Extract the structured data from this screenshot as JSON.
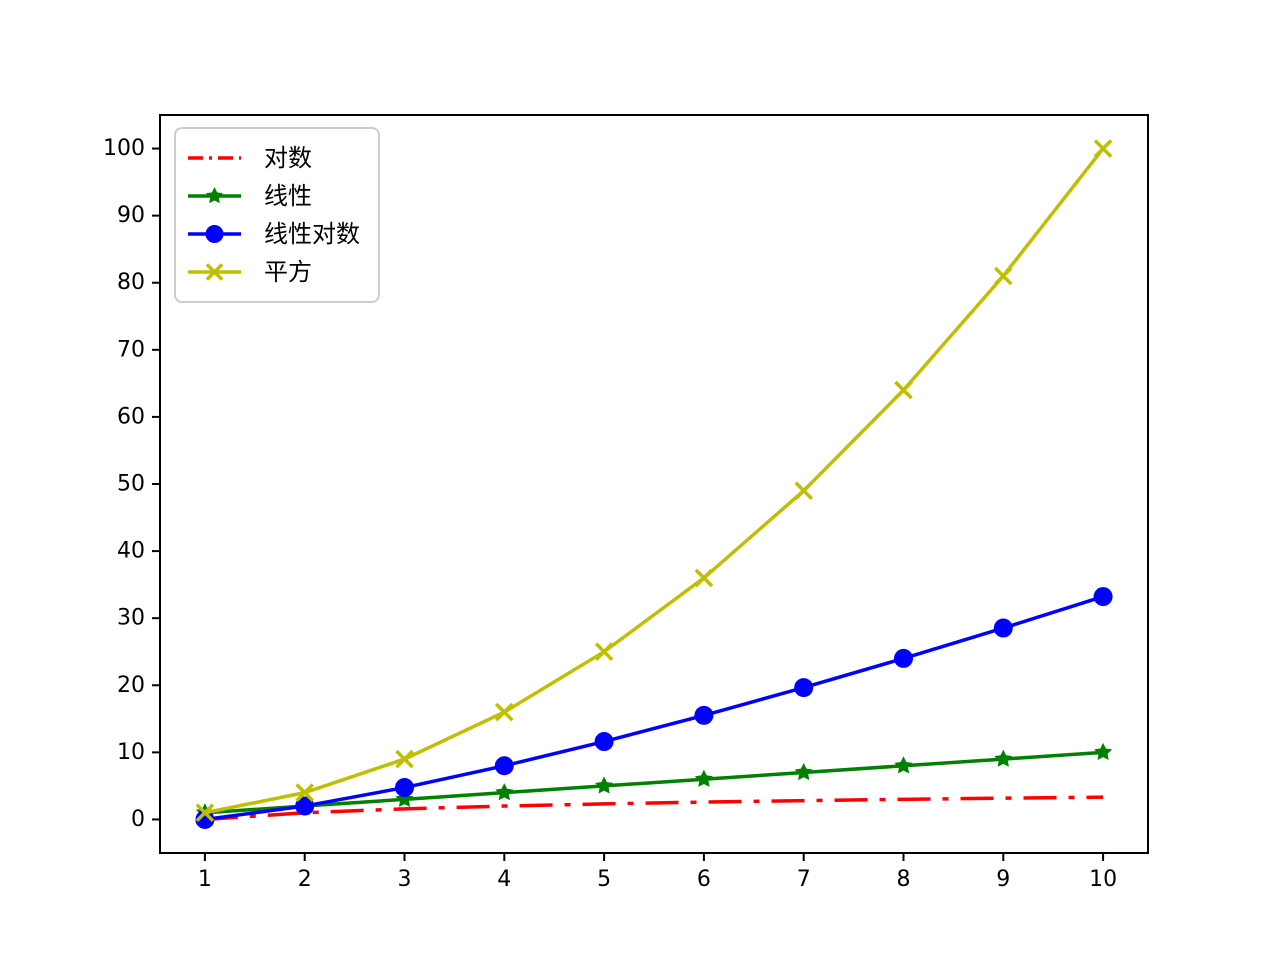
{
  "figure": {
    "background": "#ffffff",
    "axis_color": "#000000"
  },
  "chart_data": {
    "type": "line",
    "title": "",
    "xlabel": "",
    "ylabel": "",
    "grid": false,
    "legend_position": "upper-left",
    "x": [
      1,
      2,
      3,
      4,
      5,
      6,
      7,
      8,
      9,
      10
    ],
    "series": [
      {
        "name": "对数",
        "color": "#ff0000",
        "linestyle": "dashdot",
        "marker": "none",
        "values": [
          0,
          1,
          1.585,
          2,
          2.322,
          2.585,
          2.807,
          3,
          3.17,
          3.322
        ]
      },
      {
        "name": "线性",
        "color": "#008000",
        "linestyle": "solid",
        "marker": "star",
        "values": [
          1,
          2,
          3,
          4,
          5,
          6,
          7,
          8,
          9,
          10
        ]
      },
      {
        "name": "线性对数",
        "color": "#0000ff",
        "linestyle": "solid",
        "marker": "circle",
        "values": [
          0,
          2,
          4.755,
          8,
          11.61,
          15.51,
          19.651,
          24,
          28.529,
          33.219
        ]
      },
      {
        "name": "平方",
        "color": "#bfbf00",
        "linestyle": "solid",
        "marker": "x",
        "values": [
          1,
          4,
          9,
          16,
          25,
          36,
          49,
          64,
          81,
          100
        ]
      }
    ],
    "xticks": [
      "1",
      "2",
      "3",
      "4",
      "5",
      "6",
      "7",
      "8",
      "9",
      "10"
    ],
    "yticks": [
      "0",
      "10",
      "20",
      "30",
      "40",
      "50",
      "60",
      "70",
      "80",
      "90",
      "100"
    ],
    "xlim": [
      0.55,
      10.45
    ],
    "ylim": [
      -5,
      105
    ]
  }
}
